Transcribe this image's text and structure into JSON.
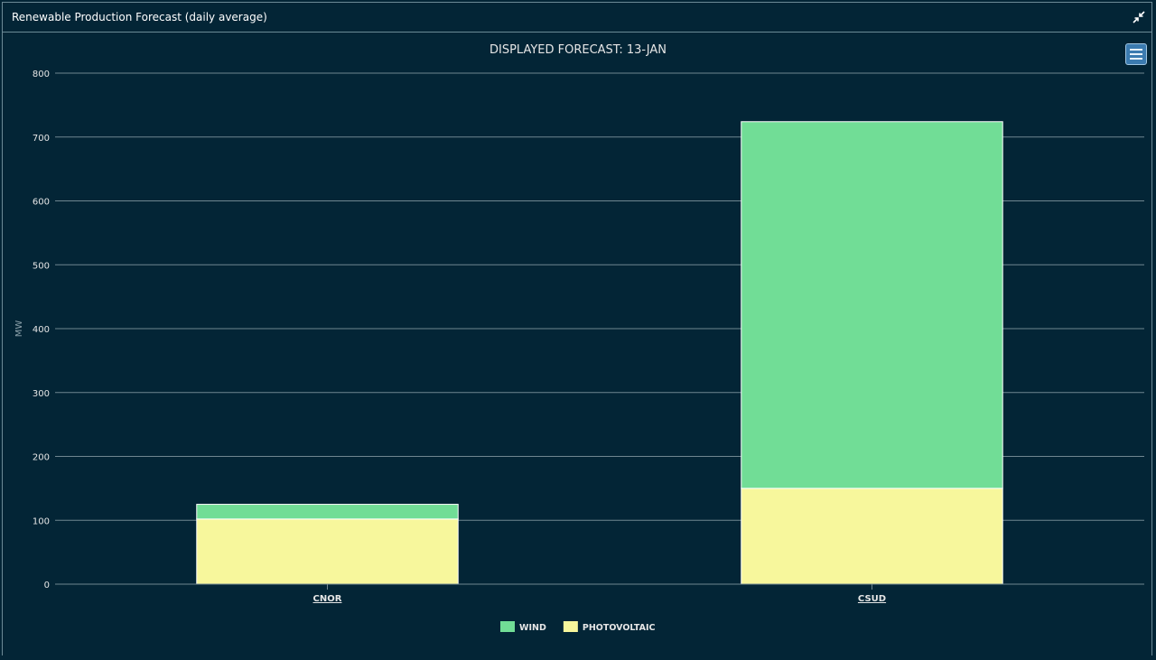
{
  "panel": {
    "title": "Renewable Production Forecast (daily average)",
    "collapse_icon": "collapse-arrows-icon",
    "menu_icon": "hamburger-menu-icon"
  },
  "colors": {
    "background": "#032536",
    "wind": "#71dd96",
    "photovoltaic": "#f7f79c",
    "grid": "#6f8690",
    "text": "#e6e6e6"
  },
  "chart_data": {
    "type": "bar",
    "stacked": true,
    "title": "DISPLAYED FORECAST: 13-JAN",
    "xlabel": "",
    "ylabel": "MW",
    "categories": [
      "CNOR",
      "CSUD"
    ],
    "series": [
      {
        "name": "PHOTOVOLTAIC",
        "color": "#f7f79c",
        "values": [
          102,
          150
        ]
      },
      {
        "name": "WIND",
        "color": "#71dd96",
        "values": [
          23,
          574
        ]
      }
    ],
    "ylim": [
      0,
      800
    ],
    "yticks": [
      "0",
      "100",
      "200",
      "300",
      "400",
      "500",
      "600",
      "700",
      "800"
    ],
    "legend": {
      "position": "bottom-center",
      "items": [
        "WIND",
        "PHOTOVOLTAIC"
      ]
    },
    "grid": true
  }
}
